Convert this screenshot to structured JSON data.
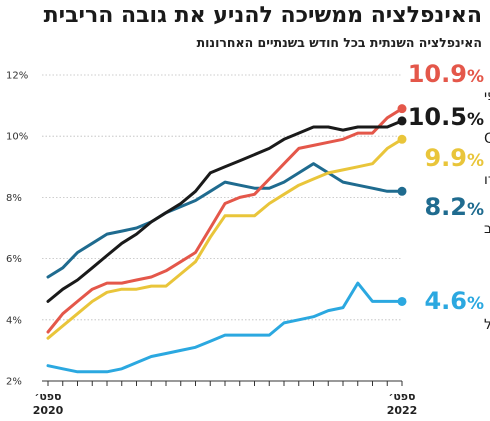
{
  "title": "האינפלציה ממשיכה להניע את גובה הריבית",
  "subtitle": "האינפלציה השנתית בכל חודש בשנתיים האחרונות",
  "chart_data": {
    "type": "line",
    "title": "האינפלציה ממשיכה להניע את גובה הריבית",
    "subtitle": "האינפלציה השנתית בכל חודש בשנתיים האחרונות",
    "x_tick_labels": [
      {
        "month": "ספט׳",
        "year": "2020"
      },
      {
        "month": "ספט׳",
        "year": "2022"
      }
    ],
    "x": [
      "2020-09",
      "2020-10",
      "2020-11",
      "2020-12",
      "2021-01",
      "2021-02",
      "2021-03",
      "2021-04",
      "2021-05",
      "2021-06",
      "2021-07",
      "2021-08",
      "2021-09",
      "2021-10",
      "2021-11",
      "2021-12",
      "2022-01",
      "2022-02",
      "2022-03",
      "2022-04",
      "2022-05",
      "2022-06",
      "2022-07",
      "2022-08",
      "2022-09"
    ],
    "ylim": [
      2,
      12
    ],
    "yticks": [
      2,
      4,
      6,
      8,
      10,
      12
    ],
    "ytick_labels": [
      "2%",
      "4%",
      "6%",
      "8%",
      "10%",
      "12%"
    ],
    "grid": true,
    "legend": "right",
    "series": [
      {
        "name": "ישראל",
        "label": "4.6",
        "color": "#2ba8e0",
        "values": [
          2.5,
          2.4,
          2.3,
          2.3,
          2.3,
          2.4,
          2.6,
          2.8,
          2.9,
          3.0,
          3.1,
          3.3,
          3.5,
          3.5,
          3.5,
          3.5,
          3.9,
          4.0,
          4.1,
          4.3,
          4.4,
          5.2,
          4.6,
          4.6,
          4.6
        ]
      },
      {
        "name": "ארה״ב",
        "label": "8.2",
        "color": "#1f6b8f",
        "values": [
          5.4,
          5.7,
          6.2,
          6.5,
          6.8,
          6.9,
          7.0,
          7.2,
          7.5,
          7.7,
          7.9,
          8.2,
          8.5,
          8.4,
          8.3,
          8.3,
          8.5,
          8.8,
          9.1,
          8.8,
          8.5,
          8.4,
          8.3,
          8.2,
          8.2
        ]
      },
      {
        "name": "גוש היורו",
        "label": "9.9",
        "color": "#e9c53a",
        "values": [
          3.4,
          3.8,
          4.2,
          4.6,
          4.9,
          5.0,
          5.0,
          5.1,
          5.1,
          5.5,
          5.9,
          6.7,
          7.4,
          7.4,
          7.4,
          7.8,
          8.1,
          8.4,
          8.6,
          8.8,
          8.9,
          9.0,
          9.1,
          9.6,
          9.9
        ]
      },
      {
        "name": "האיחוד האירופי",
        "label": "10.9",
        "color": "#e4574a",
        "values": [
          3.6,
          4.2,
          4.6,
          5.0,
          5.2,
          5.2,
          5.3,
          5.4,
          5.6,
          5.9,
          6.2,
          7.0,
          7.8,
          8.0,
          8.1,
          8.6,
          9.1,
          9.6,
          9.7,
          9.8,
          9.9,
          10.1,
          10.1,
          10.6,
          10.9
        ]
      },
      {
        "name": "OECD",
        "label": "10.5",
        "color": "#1a1a1a",
        "values": [
          4.6,
          5.0,
          5.3,
          5.7,
          6.1,
          6.5,
          6.8,
          7.2,
          7.5,
          7.8,
          8.2,
          8.8,
          9.0,
          9.2,
          9.4,
          9.6,
          9.9,
          10.1,
          10.3,
          10.3,
          10.2,
          10.3,
          10.3,
          10.3,
          10.5
        ]
      }
    ]
  }
}
